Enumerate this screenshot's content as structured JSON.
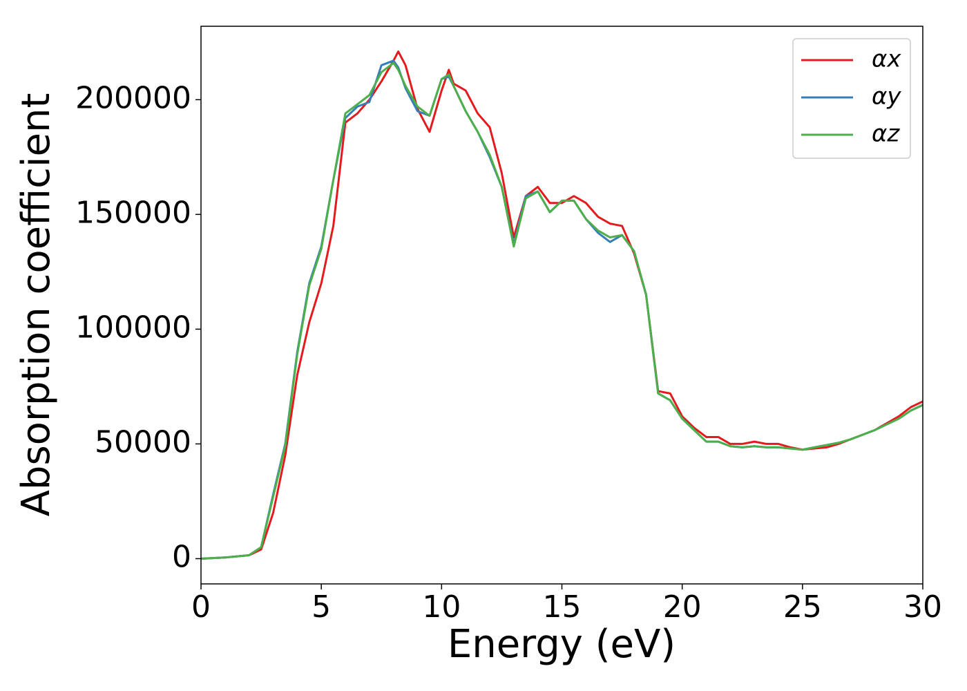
{
  "chart_data": {
    "type": "line",
    "x_label": "Energy (eV)",
    "y_label": "Absorption coefficient",
    "x": [
      0,
      1,
      2,
      2.5,
      3,
      3.5,
      4,
      4.5,
      5,
      5.5,
      6,
      6.5,
      7,
      7.5,
      8,
      8.2,
      8.5,
      9,
      9.5,
      10,
      10.3,
      10.5,
      11,
      11.5,
      12,
      12.5,
      13,
      13.5,
      14,
      14.5,
      15,
      15.5,
      16,
      16.5,
      17,
      17.5,
      18,
      18.5,
      19,
      19.5,
      20,
      20.5,
      21,
      21.5,
      22,
      22.5,
      23,
      23.5,
      24,
      24.5,
      25,
      25.5,
      26,
      26.5,
      27,
      27.5,
      28,
      28.5,
      29,
      29.5,
      30
    ],
    "series": [
      {
        "name": "αx",
        "color": "#e41a1c",
        "values": [
          0,
          500,
          1500,
          4000,
          20000,
          45000,
          80000,
          103000,
          120000,
          145000,
          190000,
          194000,
          200000,
          208000,
          217000,
          221000,
          215000,
          196000,
          186000,
          204000,
          213000,
          207000,
          204000,
          194000,
          188000,
          168000,
          140000,
          158000,
          162000,
          155000,
          155000,
          158000,
          155000,
          149000,
          146000,
          145000,
          133000,
          115000,
          73000,
          72000,
          62000,
          57000,
          53000,
          53000,
          50000,
          50000,
          51000,
          50000,
          50000,
          48500,
          47500,
          48000,
          48500,
          50000,
          52000,
          54000,
          56000,
          59000,
          62000,
          66000,
          68500
        ]
      },
      {
        "name": "αy",
        "color": "#377eb8",
        "values": [
          0,
          500,
          1500,
          5000,
          28000,
          50000,
          90000,
          120000,
          136000,
          165000,
          192000,
          197000,
          199000,
          215000,
          217000,
          214000,
          205000,
          195000,
          193000,
          209000,
          210000,
          206000,
          195000,
          186000,
          175000,
          162000,
          137000,
          158000,
          160000,
          151000,
          156000,
          156000,
          148000,
          142000,
          138000,
          141000,
          134000,
          115000,
          72000,
          69000,
          61000,
          56000,
          51000,
          51000,
          49000,
          48500,
          49000,
          48500,
          48500,
          48000,
          47500,
          48500,
          49500,
          50500,
          52000,
          54000,
          56000,
          58500,
          61000,
          64500,
          67000
        ]
      },
      {
        "name": "αz",
        "color": "#4daf4a",
        "values": [
          0,
          500,
          1500,
          5000,
          27000,
          49000,
          89000,
          119000,
          135000,
          165000,
          194000,
          198000,
          202000,
          212000,
          216000,
          213000,
          206000,
          197000,
          193000,
          209000,
          211000,
          206000,
          195000,
          186000,
          176000,
          162000,
          136000,
          157000,
          160000,
          151000,
          156000,
          156000,
          148000,
          143000,
          140000,
          141000,
          134000,
          115000,
          72000,
          69000,
          61000,
          56000,
          51000,
          51000,
          49000,
          48500,
          49000,
          48500,
          48500,
          48000,
          47500,
          48500,
          49500,
          50500,
          52000,
          54000,
          56000,
          58500,
          61000,
          64500,
          67000
        ]
      }
    ],
    "xlim": [
      0,
      30
    ],
    "xticks": [
      0,
      5,
      10,
      15,
      20,
      25,
      30
    ],
    "ylim": [
      -11000,
      232000
    ],
    "yticks": [
      0,
      50000,
      100000,
      150000,
      200000
    ],
    "legend": "upper right",
    "grid": false
  }
}
